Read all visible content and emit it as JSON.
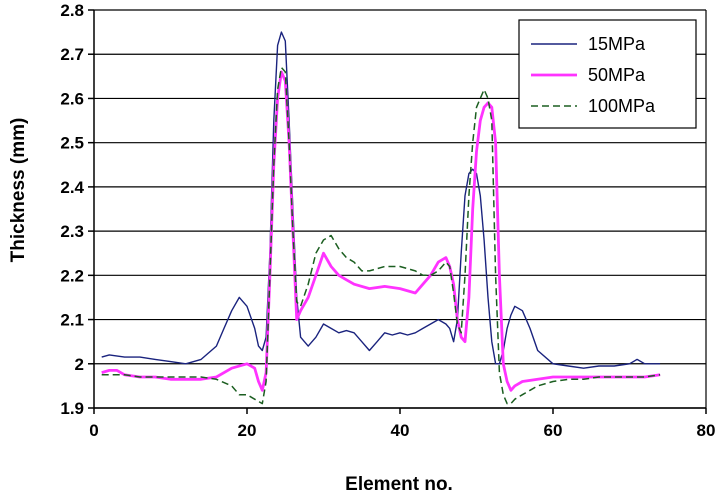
{
  "chart_data": {
    "type": "line",
    "title": "",
    "xlabel": "Element no.",
    "ylabel": "Thickness (mm)",
    "xlim": [
      0,
      80
    ],
    "ylim": [
      1.9,
      2.8
    ],
    "xticks": [
      "0",
      "20",
      "40",
      "60",
      "80"
    ],
    "yticks": [
      "1.9",
      "2",
      "2.1",
      "2.2",
      "2.3",
      "2.4",
      "2.5",
      "2.6",
      "2.7",
      "2.8"
    ],
    "grid": "horizontal",
    "legend_position": "top-right",
    "series": [
      {
        "name": "15MPa",
        "color": "#1a237e",
        "dash": "solid",
        "x": [
          1,
          2,
          4,
          6,
          8,
          10,
          12,
          14,
          16,
          17,
          18,
          19,
          20,
          21,
          21.5,
          22,
          22.5,
          23,
          23.5,
          24,
          24.5,
          25,
          25.5,
          26,
          26.5,
          27,
          28,
          29,
          30,
          31,
          32,
          33,
          34,
          35,
          36,
          37,
          38,
          39,
          40,
          41,
          42,
          43,
          44,
          45,
          46,
          46.5,
          47,
          47.5,
          48,
          48.5,
          49,
          49.5,
          50,
          50.5,
          51,
          51.5,
          52,
          52.5,
          53,
          53.5,
          54,
          54.5,
          55,
          56,
          57,
          58,
          60,
          62,
          64,
          66,
          68,
          70,
          71,
          72,
          74
        ],
        "y": [
          2.015,
          2.02,
          2.015,
          2.015,
          2.01,
          2.005,
          2.0,
          2.01,
          2.04,
          2.08,
          2.12,
          2.15,
          2.13,
          2.08,
          2.04,
          2.03,
          2.06,
          2.25,
          2.55,
          2.72,
          2.75,
          2.73,
          2.55,
          2.35,
          2.15,
          2.06,
          2.04,
          2.06,
          2.09,
          2.08,
          2.07,
          2.075,
          2.07,
          2.05,
          2.03,
          2.05,
          2.07,
          2.065,
          2.07,
          2.065,
          2.07,
          2.08,
          2.09,
          2.1,
          2.09,
          2.08,
          2.05,
          2.1,
          2.25,
          2.38,
          2.43,
          2.44,
          2.43,
          2.38,
          2.28,
          2.15,
          2.05,
          2.0,
          2.0,
          2.03,
          2.08,
          2.11,
          2.13,
          2.12,
          2.08,
          2.03,
          2.0,
          1.995,
          1.99,
          1.995,
          1.995,
          2.0,
          2.01,
          2.0,
          2.0
        ]
      },
      {
        "name": "50MPa",
        "color": "#ff33ff",
        "dash": "solid",
        "x": [
          1,
          2,
          3,
          4,
          6,
          8,
          10,
          12,
          14,
          16,
          18,
          20,
          21,
          21.5,
          22,
          22.5,
          23,
          23.5,
          24,
          24.5,
          25,
          25.5,
          26,
          26.5,
          27,
          28,
          29,
          30,
          31,
          32,
          33,
          34,
          36,
          38,
          40,
          42,
          43,
          44,
          45,
          46,
          46.5,
          47,
          47.5,
          48,
          48.5,
          49,
          49.5,
          50,
          50.5,
          51,
          51.5,
          52,
          52.5,
          53,
          53.5,
          54,
          54.5,
          55,
          56,
          58,
          60,
          62,
          64,
          66,
          68,
          70,
          72,
          74
        ],
        "y": [
          1.98,
          1.985,
          1.985,
          1.975,
          1.97,
          1.97,
          1.965,
          1.965,
          1.965,
          1.97,
          1.99,
          2.0,
          1.99,
          1.96,
          1.94,
          1.98,
          2.2,
          2.45,
          2.6,
          2.66,
          2.64,
          2.5,
          2.3,
          2.1,
          2.12,
          2.15,
          2.2,
          2.25,
          2.22,
          2.2,
          2.19,
          2.18,
          2.17,
          2.175,
          2.17,
          2.16,
          2.18,
          2.2,
          2.23,
          2.24,
          2.22,
          2.18,
          2.1,
          2.06,
          2.05,
          2.15,
          2.35,
          2.48,
          2.55,
          2.58,
          2.59,
          2.58,
          2.5,
          2.2,
          2.0,
          1.96,
          1.94,
          1.95,
          1.96,
          1.965,
          1.97,
          1.97,
          1.97,
          1.97,
          1.97,
          1.97,
          1.97,
          1.975
        ]
      },
      {
        "name": "100MPa",
        "color": "#1b5e20",
        "dash": "dashed",
        "x": [
          1,
          2,
          4,
          6,
          8,
          10,
          12,
          14,
          16,
          18,
          19,
          20,
          21,
          21.5,
          22,
          22.5,
          23,
          23.5,
          24,
          24.5,
          25,
          25.5,
          26,
          26.5,
          27,
          28,
          29,
          30,
          31,
          32,
          33,
          34,
          35,
          36,
          38,
          40,
          42,
          43,
          44,
          45,
          46,
          46.5,
          47,
          47.5,
          48,
          48.5,
          49,
          49.5,
          50,
          50.5,
          51,
          51.5,
          52,
          52.5,
          53,
          53.5,
          54,
          54.5,
          55,
          56,
          57,
          58,
          60,
          62,
          64,
          66,
          68,
          70,
          72,
          74
        ],
        "y": [
          1.975,
          1.975,
          1.975,
          1.97,
          1.97,
          1.97,
          1.97,
          1.97,
          1.965,
          1.95,
          1.93,
          1.93,
          1.92,
          1.915,
          1.91,
          1.96,
          2.2,
          2.45,
          2.62,
          2.67,
          2.66,
          2.5,
          2.3,
          2.14,
          2.13,
          2.18,
          2.25,
          2.28,
          2.29,
          2.26,
          2.24,
          2.23,
          2.21,
          2.21,
          2.22,
          2.22,
          2.21,
          2.2,
          2.2,
          2.21,
          2.23,
          2.22,
          2.16,
          2.09,
          2.07,
          2.2,
          2.38,
          2.5,
          2.58,
          2.6,
          2.62,
          2.6,
          2.55,
          2.2,
          1.98,
          1.93,
          1.91,
          1.91,
          1.92,
          1.93,
          1.94,
          1.95,
          1.96,
          1.965,
          1.965,
          1.97,
          1.97,
          1.97,
          1.97,
          1.975
        ]
      }
    ]
  }
}
